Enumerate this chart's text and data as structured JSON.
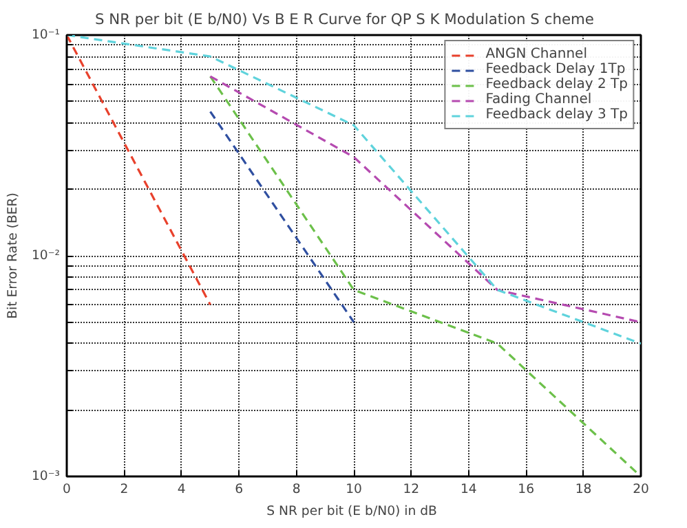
{
  "chart_data": {
    "type": "line",
    "title": "S NR  per bit (E b/N0) Vs  B E R  Curve for QP S K  Modulation S cheme",
    "xlabel": "S NR  per bit (E b/N0) in dB",
    "ylabel": "Bit Error Rate (BER)",
    "log": "y",
    "grid": true,
    "legend": "top right",
    "line_style": "dashed",
    "marker": "none",
    "xlim": [
      0,
      20
    ],
    "xticks": [
      0,
      2,
      4,
      6,
      8,
      10,
      12,
      14,
      16,
      18,
      20
    ],
    "ylim": [
      0.001,
      0.1
    ],
    "yticks": [
      {
        "value": 0.001,
        "label": "10⁻³"
      },
      {
        "value": 0.002,
        "label": null
      },
      {
        "value": 0.003,
        "label": null
      },
      {
        "value": 0.004,
        "label": null
      },
      {
        "value": 0.005,
        "label": null
      },
      {
        "value": 0.006,
        "label": null
      },
      {
        "value": 0.007,
        "label": null
      },
      {
        "value": 0.008,
        "label": null
      },
      {
        "value": 0.009,
        "label": null
      },
      {
        "value": 0.01,
        "label": "10⁻²"
      },
      {
        "value": 0.02,
        "label": null
      },
      {
        "value": 0.03,
        "label": null
      },
      {
        "value": 0.04,
        "label": null
      },
      {
        "value": 0.05,
        "label": null
      },
      {
        "value": 0.06,
        "label": null
      },
      {
        "value": 0.07,
        "label": null
      },
      {
        "value": 0.08,
        "label": null
      },
      {
        "value": 0.09,
        "label": null
      },
      {
        "value": 0.1,
        "label": "10⁻¹"
      }
    ],
    "series": [
      {
        "name": "ANGN Channel",
        "color": "#e8412c",
        "x": [
          0,
          5
        ],
        "values": [
          0.1,
          0.006
        ]
      },
      {
        "name": "Feedback Delay 1Tp",
        "color": "#2f4fa0",
        "x": [
          5,
          10
        ],
        "values": [
          0.045,
          0.005
        ]
      },
      {
        "name": "Feedback delay 2 Tp",
        "color": "#6cc04a",
        "x": [
          5,
          10,
          15,
          20
        ],
        "values": [
          0.065,
          0.007,
          0.004,
          0.001
        ]
      },
      {
        "name": "Fading Channel",
        "color": "#b54ab0",
        "x": [
          5,
          10,
          15,
          20
        ],
        "values": [
          0.065,
          0.028,
          0.007,
          0.005
        ]
      },
      {
        "name": "Feedback delay 3 Tp",
        "color": "#5fd3dc",
        "x": [
          0,
          5,
          10,
          15,
          20
        ],
        "values": [
          0.1,
          0.08,
          0.039,
          0.007,
          0.004
        ]
      }
    ]
  }
}
